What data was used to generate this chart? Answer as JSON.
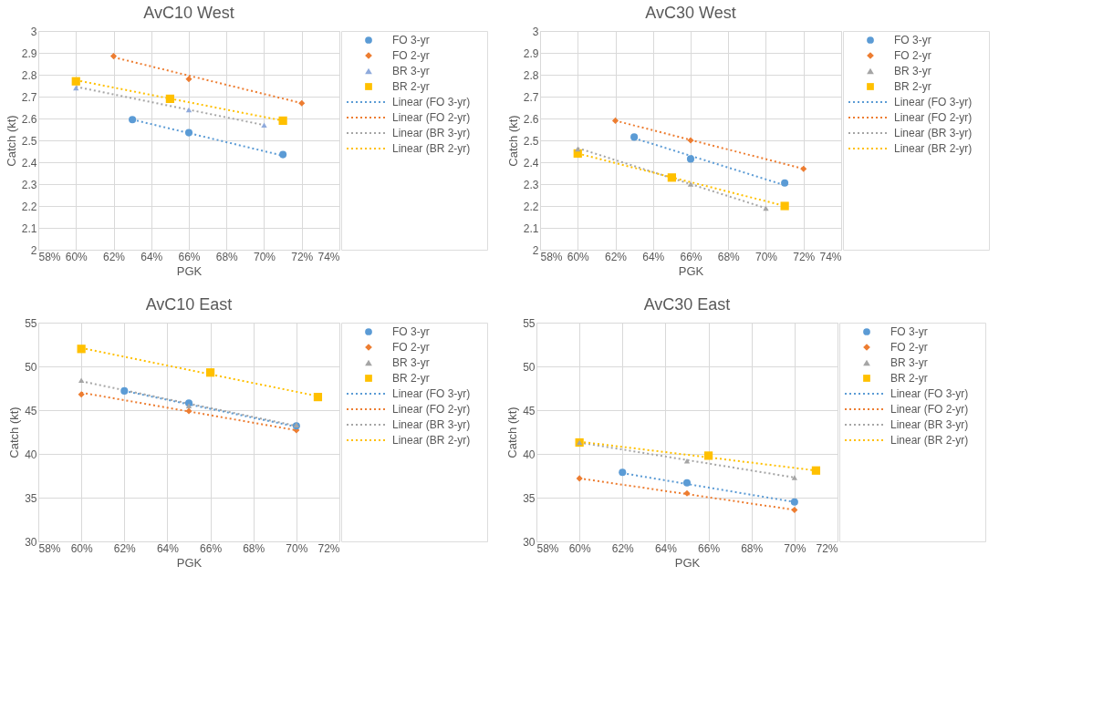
{
  "chart_data": [
    {
      "type": "scatter",
      "title": "AvC10 West",
      "xlabel": "PGK",
      "ylabel": "Catch (kt)",
      "xlim": [
        0.58,
        0.74
      ],
      "xticks": [
        {
          "value": 0.58,
          "label": "58%"
        },
        {
          "value": 0.6,
          "label": "60%"
        },
        {
          "value": 0.62,
          "label": "62%"
        },
        {
          "value": 0.64,
          "label": "64%"
        },
        {
          "value": 0.66,
          "label": "66%"
        },
        {
          "value": 0.68,
          "label": "68%"
        },
        {
          "value": 0.7,
          "label": "70%"
        },
        {
          "value": 0.72,
          "label": "72%"
        },
        {
          "value": 0.74,
          "label": "74%"
        }
      ],
      "ylim": [
        2,
        3
      ],
      "yticks": [
        2,
        2.1,
        2.2,
        2.3,
        2.4,
        2.5,
        2.6,
        2.7,
        2.8,
        2.9,
        3
      ],
      "grid": true,
      "legend": "top right",
      "series": [
        {
          "name": "FO 3-yr",
          "color": "#5b9bd5",
          "marker": "circle",
          "x": [
            0.63,
            0.66,
            0.71
          ],
          "values": [
            2.595,
            2.535,
            2.435
          ]
        },
        {
          "name": "FO 2-yr",
          "color": "#ed7d31",
          "marker": "diamond",
          "x": [
            0.62,
            0.66,
            0.72
          ],
          "values": [
            2.885,
            2.78,
            2.67
          ]
        },
        {
          "name": "BR 3-yr",
          "color": "#8faadc",
          "marker": "triangle",
          "x": [
            0.6,
            0.66,
            0.7
          ],
          "values": [
            2.74,
            2.64,
            2.57
          ]
        },
        {
          "name": "BR 2-yr",
          "color": "#ffc000",
          "marker": "square",
          "x": [
            0.6,
            0.65,
            0.71
          ],
          "values": [
            2.77,
            2.69,
            2.59
          ]
        },
        {
          "name": "Linear (FO 3-yr)",
          "type": "line",
          "color": "#5b9bd5",
          "line_style": "dotted",
          "marker": "none",
          "x": [
            0.63,
            0.71
          ],
          "values": [
            2.595,
            2.43
          ]
        },
        {
          "name": "Linear (FO 2-yr)",
          "type": "line",
          "color": "#ed7d31",
          "line_style": "dotted",
          "marker": "none",
          "x": [
            0.62,
            0.72
          ],
          "values": [
            2.88,
            2.67
          ]
        },
        {
          "name": "Linear (BR 3-yr)",
          "type": "line",
          "color": "#a5a5a5",
          "line_style": "dotted",
          "marker": "none",
          "x": [
            0.6,
            0.7
          ],
          "values": [
            2.745,
            2.57
          ]
        },
        {
          "name": "Linear (BR 2-yr)",
          "type": "line",
          "color": "#ffc000",
          "line_style": "dotted",
          "marker": "none",
          "x": [
            0.6,
            0.71
          ],
          "values": [
            2.775,
            2.59
          ]
        }
      ]
    },
    {
      "type": "scatter",
      "title": "AvC30 West",
      "xlabel": "PGK",
      "ylabel": "Catch (kt)",
      "xlim": [
        0.58,
        0.74
      ],
      "xticks": [
        {
          "value": 0.58,
          "label": "58%"
        },
        {
          "value": 0.6,
          "label": "60%"
        },
        {
          "value": 0.62,
          "label": "62%"
        },
        {
          "value": 0.64,
          "label": "64%"
        },
        {
          "value": 0.66,
          "label": "66%"
        },
        {
          "value": 0.68,
          "label": "68%"
        },
        {
          "value": 0.7,
          "label": "70%"
        },
        {
          "value": 0.72,
          "label": "72%"
        },
        {
          "value": 0.74,
          "label": "74%"
        }
      ],
      "ylim": [
        2,
        3
      ],
      "yticks": [
        2,
        2.1,
        2.2,
        2.3,
        2.4,
        2.5,
        2.6,
        2.7,
        2.8,
        2.9,
        3
      ],
      "grid": true,
      "legend": "top right",
      "series": [
        {
          "name": "FO 3-yr",
          "color": "#5b9bd5",
          "marker": "circle",
          "x": [
            0.63,
            0.66,
            0.71
          ],
          "values": [
            2.515,
            2.415,
            2.305
          ]
        },
        {
          "name": "FO 2-yr",
          "color": "#ed7d31",
          "marker": "diamond",
          "x": [
            0.62,
            0.66,
            0.72
          ],
          "values": [
            2.59,
            2.5,
            2.37
          ]
        },
        {
          "name": "BR 3-yr",
          "color": "#a5a5a5",
          "marker": "triangle",
          "x": [
            0.6,
            0.66,
            0.7
          ],
          "values": [
            2.46,
            2.3,
            2.19
          ]
        },
        {
          "name": "BR 2-yr",
          "color": "#ffc000",
          "marker": "square",
          "x": [
            0.6,
            0.65,
            0.71
          ],
          "values": [
            2.44,
            2.33,
            2.2
          ]
        },
        {
          "name": "Linear (FO 3-yr)",
          "type": "line",
          "color": "#5b9bd5",
          "line_style": "dotted",
          "marker": "none",
          "x": [
            0.63,
            0.71
          ],
          "values": [
            2.51,
            2.295
          ]
        },
        {
          "name": "Linear (FO 2-yr)",
          "type": "line",
          "color": "#ed7d31",
          "line_style": "dotted",
          "marker": "none",
          "x": [
            0.62,
            0.72
          ],
          "values": [
            2.59,
            2.37
          ]
        },
        {
          "name": "Linear (BR 3-yr)",
          "type": "line",
          "color": "#a5a5a5",
          "line_style": "dotted",
          "marker": "none",
          "x": [
            0.6,
            0.7
          ],
          "values": [
            2.465,
            2.19
          ]
        },
        {
          "name": "Linear (BR 2-yr)",
          "type": "line",
          "color": "#ffc000",
          "line_style": "dotted",
          "marker": "none",
          "x": [
            0.6,
            0.71
          ],
          "values": [
            2.44,
            2.2
          ]
        }
      ]
    },
    {
      "type": "scatter",
      "title": "AvC10 East",
      "xlabel": "PGK",
      "ylabel": "Catch (kt)",
      "xlim": [
        0.58,
        0.72
      ],
      "xticks": [
        {
          "value": 0.58,
          "label": "58%"
        },
        {
          "value": 0.6,
          "label": "60%"
        },
        {
          "value": 0.62,
          "label": "62%"
        },
        {
          "value": 0.64,
          "label": "64%"
        },
        {
          "value": 0.66,
          "label": "66%"
        },
        {
          "value": 0.68,
          "label": "68%"
        },
        {
          "value": 0.7,
          "label": "70%"
        },
        {
          "value": 0.72,
          "label": "72%"
        }
      ],
      "ylim": [
        30,
        55
      ],
      "yticks": [
        30,
        35,
        40,
        45,
        50,
        55
      ],
      "grid": true,
      "legend": "top right",
      "series": [
        {
          "name": "FO 3-yr",
          "color": "#5b9bd5",
          "marker": "circle",
          "x": [
            0.62,
            0.65,
            0.7
          ],
          "values": [
            47.2,
            45.8,
            43.2
          ]
        },
        {
          "name": "FO 2-yr",
          "color": "#ed7d31",
          "marker": "diamond",
          "x": [
            0.6,
            0.65,
            0.7
          ],
          "values": [
            46.8,
            44.9,
            42.7
          ]
        },
        {
          "name": "BR 3-yr",
          "color": "#a5a5a5",
          "marker": "triangle",
          "x": [
            0.6,
            0.65,
            0.7
          ],
          "values": [
            48.4,
            45.5,
            43.3
          ]
        },
        {
          "name": "BR 2-yr",
          "color": "#ffc000",
          "marker": "square",
          "x": [
            0.6,
            0.66,
            0.71
          ],
          "values": [
            52.0,
            49.3,
            46.5
          ]
        },
        {
          "name": "Linear (FO 3-yr)",
          "type": "line",
          "color": "#5b9bd5",
          "line_style": "dotted",
          "marker": "none",
          "x": [
            0.62,
            0.7
          ],
          "values": [
            47.2,
            43.1
          ]
        },
        {
          "name": "Linear (FO 2-yr)",
          "type": "line",
          "color": "#ed7d31",
          "line_style": "dotted",
          "marker": "none",
          "x": [
            0.6,
            0.7
          ],
          "values": [
            47.0,
            42.7
          ]
        },
        {
          "name": "Linear (BR 3-yr)",
          "type": "line",
          "color": "#a5a5a5",
          "line_style": "dotted",
          "marker": "none",
          "x": [
            0.6,
            0.7
          ],
          "values": [
            48.3,
            43.2
          ]
        },
        {
          "name": "Linear (BR 2-yr)",
          "type": "line",
          "color": "#ffc000",
          "line_style": "dotted",
          "marker": "none",
          "x": [
            0.6,
            0.71
          ],
          "values": [
            52.1,
            46.6
          ]
        }
      ]
    },
    {
      "type": "scatter",
      "title": "AvC30 East",
      "xlabel": "PGK",
      "ylabel": "Catch (kt)",
      "xlim": [
        0.58,
        0.72
      ],
      "xticks": [
        {
          "value": 0.58,
          "label": "58%"
        },
        {
          "value": 0.6,
          "label": "60%"
        },
        {
          "value": 0.62,
          "label": "62%"
        },
        {
          "value": 0.64,
          "label": "64%"
        },
        {
          "value": 0.66,
          "label": "66%"
        },
        {
          "value": 0.68,
          "label": "68%"
        },
        {
          "value": 0.7,
          "label": "70%"
        },
        {
          "value": 0.72,
          "label": "72%"
        }
      ],
      "ylim": [
        30,
        55
      ],
      "yticks": [
        30,
        35,
        40,
        45,
        50,
        55
      ],
      "grid": true,
      "legend": "top right",
      "series": [
        {
          "name": "FO 3-yr",
          "color": "#5b9bd5",
          "marker": "circle",
          "x": [
            0.62,
            0.65,
            0.7
          ],
          "values": [
            37.9,
            36.7,
            34.5
          ]
        },
        {
          "name": "FO 2-yr",
          "color": "#ed7d31",
          "marker": "diamond",
          "x": [
            0.6,
            0.65,
            0.7
          ],
          "values": [
            37.2,
            35.5,
            33.6
          ]
        },
        {
          "name": "BR 3-yr",
          "color": "#a5a5a5",
          "marker": "triangle",
          "x": [
            0.6,
            0.65,
            0.7
          ],
          "values": [
            41.3,
            39.2,
            37.3
          ]
        },
        {
          "name": "BR 2-yr",
          "color": "#ffc000",
          "marker": "square",
          "x": [
            0.6,
            0.66,
            0.71
          ],
          "values": [
            41.3,
            39.8,
            38.1
          ]
        },
        {
          "name": "Linear (FO 3-yr)",
          "type": "line",
          "color": "#5b9bd5",
          "line_style": "dotted",
          "marker": "none",
          "x": [
            0.62,
            0.7
          ],
          "values": [
            37.8,
            34.5
          ]
        },
        {
          "name": "Linear (FO 2-yr)",
          "type": "line",
          "color": "#ed7d31",
          "line_style": "dotted",
          "marker": "none",
          "x": [
            0.6,
            0.7
          ],
          "values": [
            37.2,
            33.6
          ]
        },
        {
          "name": "Linear (BR 3-yr)",
          "type": "line",
          "color": "#a5a5a5",
          "line_style": "dotted",
          "marker": "none",
          "x": [
            0.6,
            0.7
          ],
          "values": [
            41.3,
            37.3
          ]
        },
        {
          "name": "Linear (BR 2-yr)",
          "type": "line",
          "color": "#ffc000",
          "line_style": "dotted",
          "marker": "none",
          "x": [
            0.6,
            0.71
          ],
          "values": [
            41.4,
            38.1
          ]
        }
      ]
    }
  ]
}
